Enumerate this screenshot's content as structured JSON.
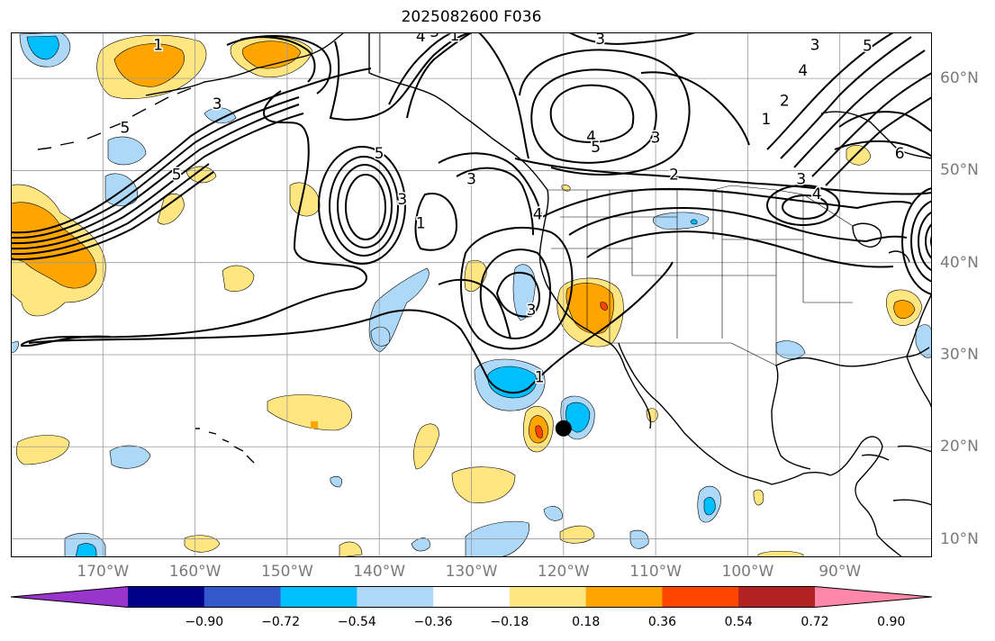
{
  "title": "2025082600 F036",
  "map": {
    "projection": "PlateCarree",
    "extent": {
      "lon_min": -180,
      "lon_max": -80,
      "lat_min": 8,
      "lat_max": 65
    },
    "storm_marker": {
      "lon": -120,
      "lat": 22
    }
  },
  "longitude_labels": [
    {
      "text": "170°W",
      "lon": -170
    },
    {
      "text": "160°W",
      "lon": -160
    },
    {
      "text": "150°W",
      "lon": -150
    },
    {
      "text": "140°W",
      "lon": -140
    },
    {
      "text": "130°W",
      "lon": -130
    },
    {
      "text": "120°W",
      "lon": -120
    },
    {
      "text": "110°W",
      "lon": -110
    },
    {
      "text": "100°W",
      "lon": -100
    },
    {
      "text": "90°W",
      "lon": -90
    }
  ],
  "latitude_labels": [
    {
      "text": "60°N",
      "lat": 60
    },
    {
      "text": "50°N",
      "lat": 50
    },
    {
      "text": "40°N",
      "lat": 40
    },
    {
      "text": "30°N",
      "lat": 30
    },
    {
      "text": "20°N",
      "lat": 20
    },
    {
      "text": "10°N",
      "lat": 10
    }
  ],
  "contour_labels": [
    {
      "text": "1",
      "lon": -164,
      "lat": 63.6
    },
    {
      "text": "2",
      "lon": -132.5,
      "lat": 65.5
    },
    {
      "text": "3",
      "lon": -134,
      "lat": 65
    },
    {
      "text": "4",
      "lon": -135.5,
      "lat": 64.5
    },
    {
      "text": "3",
      "lon": -116,
      "lat": 64.2
    },
    {
      "text": "1",
      "lon": -131.8,
      "lat": 64.6
    },
    {
      "text": "3",
      "lon": -157.6,
      "lat": 57.2
    },
    {
      "text": "5",
      "lon": -167.6,
      "lat": 54.6
    },
    {
      "text": "5",
      "lon": -162,
      "lat": 49.5
    },
    {
      "text": "5",
      "lon": -140,
      "lat": 51.8
    },
    {
      "text": "3",
      "lon": -137.5,
      "lat": 46.8
    },
    {
      "text": "1",
      "lon": -135.5,
      "lat": 44.2
    },
    {
      "text": "3",
      "lon": -130,
      "lat": 49
    },
    {
      "text": "4",
      "lon": -117,
      "lat": 53.6
    },
    {
      "text": "5",
      "lon": -116.5,
      "lat": 52.5
    },
    {
      "text": "3",
      "lon": -110,
      "lat": 53.5
    },
    {
      "text": "2",
      "lon": -108,
      "lat": 49.5
    },
    {
      "text": "3",
      "lon": -94.2,
      "lat": 49
    },
    {
      "text": "4",
      "lon": -92.5,
      "lat": 47.4
    },
    {
      "text": "4",
      "lon": -122.8,
      "lat": 45.2
    },
    {
      "text": "1",
      "lon": -98,
      "lat": 55.5
    },
    {
      "text": "2",
      "lon": -96,
      "lat": 57.5
    },
    {
      "text": "4",
      "lon": -94,
      "lat": 60.8
    },
    {
      "text": "3",
      "lon": -92.7,
      "lat": 63.6
    },
    {
      "text": "5",
      "lon": -87,
      "lat": 63.5
    },
    {
      "text": "6",
      "lon": -83.5,
      "lat": 51.8
    },
    {
      "text": "3",
      "lon": -123.5,
      "lat": 34.8
    },
    {
      "text": "1",
      "lon": -122.6,
      "lat": 27.5
    }
  ],
  "legend": {
    "colors": [
      "#9a35cc",
      "#00008b",
      "#3458cc",
      "#00bfff",
      "#add8f7",
      "#ffffff",
      "#ffe680",
      "#ffa500",
      "#ff4500",
      "#b22222",
      "#ff88aa"
    ],
    "ticks": [
      "−0.90",
      "−0.72",
      "−0.54",
      "−0.36",
      "−0.18",
      "0.18",
      "0.36",
      "0.54",
      "0.72",
      "0.90"
    ]
  }
}
